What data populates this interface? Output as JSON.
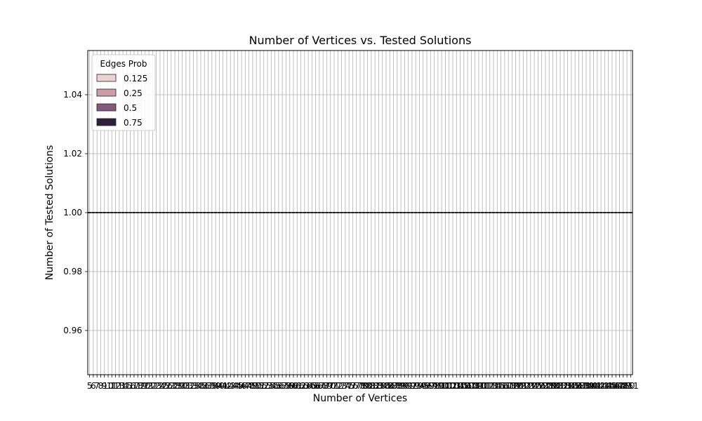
{
  "chart_data": {
    "type": "box",
    "title": "Number of Vertices vs. Tested Solutions",
    "xlabel": "Number of Vertices",
    "ylabel": "Number of Tested Solutions",
    "ylim": [
      0.945,
      1.055
    ],
    "yticks": [
      "0.96",
      "0.98",
      "1.00",
      "1.02",
      "1.04"
    ],
    "ytick_values": [
      0.96,
      0.98,
      1.0,
      1.02,
      1.04
    ],
    "categories": [
      "5",
      "6",
      "7",
      "8",
      "9",
      "10",
      "11",
      "12",
      "13",
      "14",
      "15",
      "16",
      "17",
      "18",
      "19",
      "20",
      "21",
      "22",
      "23",
      "24",
      "25",
      "26",
      "27",
      "28",
      "29",
      "30",
      "31",
      "32",
      "33",
      "34",
      "35",
      "36",
      "37",
      "38",
      "39",
      "40",
      "41",
      "42",
      "43",
      "44",
      "45",
      "46",
      "47",
      "48",
      "49",
      "50",
      "51",
      "52",
      "53",
      "54",
      "55",
      "56",
      "57",
      "58",
      "59",
      "60",
      "61",
      "62",
      "63",
      "64",
      "65",
      "66",
      "67",
      "68",
      "69",
      "70",
      "71",
      "72",
      "73",
      "74",
      "75",
      "76",
      "77",
      "78",
      "79",
      "80",
      "81",
      "82",
      "83",
      "84",
      "85",
      "86",
      "87",
      "88",
      "89",
      "90",
      "91",
      "92",
      "93",
      "94",
      "95",
      "96",
      "97",
      "98",
      "99",
      "100",
      "101",
      "102",
      "103",
      "104",
      "105",
      "106",
      "107",
      "108",
      "109",
      "110",
      "111",
      "112",
      "113",
      "114",
      "115",
      "116",
      "117",
      "118",
      "119",
      "120",
      "121",
      "122",
      "123",
      "124",
      "125",
      "126",
      "127",
      "128",
      "129",
      "130",
      "131",
      "132",
      "133",
      "134",
      "135",
      "136",
      "137",
      "138",
      "139",
      "140",
      "141",
      "142",
      "143",
      "144",
      "145",
      "146",
      "147",
      "148",
      "149",
      "150",
      "151"
    ],
    "constant_value": 1.0,
    "grid": true,
    "legend": {
      "title": "Edges Prob",
      "location": "upper left",
      "entries": [
        {
          "label": "0.125",
          "color": "#ead3d2"
        },
        {
          "label": "0.25",
          "color": "#c99ea6"
        },
        {
          "label": "0.5",
          "color": "#825a7d"
        },
        {
          "label": "0.75",
          "color": "#2e1e3b"
        }
      ]
    }
  }
}
